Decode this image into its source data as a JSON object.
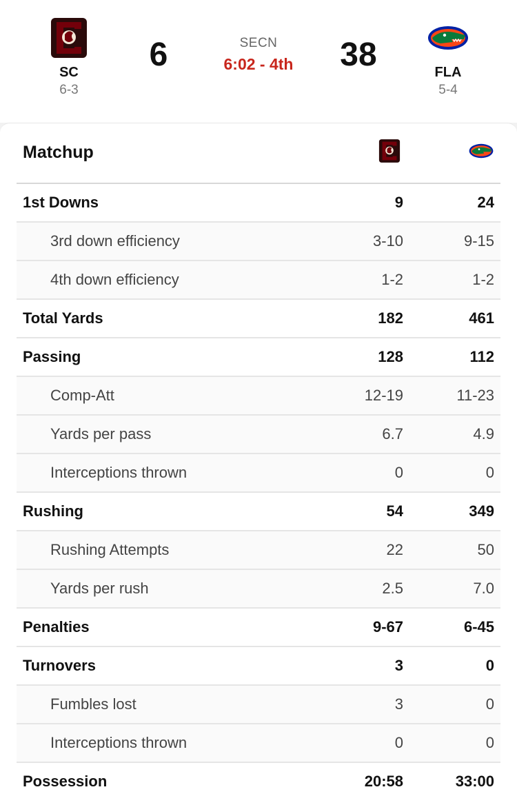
{
  "header": {
    "home": {
      "abbr": "SC",
      "record": "6-3",
      "score": "6",
      "logo_icon": "gamecock-logo-icon"
    },
    "away": {
      "abbr": "FLA",
      "record": "5-4",
      "score": "38",
      "logo_icon": "gator-logo-icon"
    },
    "network": "SECN",
    "clock": "6:02 - 4th"
  },
  "colors": {
    "clock_red": "#c8261c",
    "sc_garnet": "#73000a",
    "fla_blue": "#0021a5",
    "fla_orange": "#fa4616"
  },
  "matchup": {
    "title": "Matchup",
    "rows": [
      {
        "label": "1st Downs",
        "home": "9",
        "away": "24",
        "type": "main"
      },
      {
        "label": "3rd down efficiency",
        "home": "3-10",
        "away": "9-15",
        "type": "sub"
      },
      {
        "label": "4th down efficiency",
        "home": "1-2",
        "away": "1-2",
        "type": "sub"
      },
      {
        "label": "Total Yards",
        "home": "182",
        "away": "461",
        "type": "main"
      },
      {
        "label": "Passing",
        "home": "128",
        "away": "112",
        "type": "main"
      },
      {
        "label": "Comp-Att",
        "home": "12-19",
        "away": "11-23",
        "type": "sub"
      },
      {
        "label": "Yards per pass",
        "home": "6.7",
        "away": "4.9",
        "type": "sub"
      },
      {
        "label": "Interceptions thrown",
        "home": "0",
        "away": "0",
        "type": "sub"
      },
      {
        "label": "Rushing",
        "home": "54",
        "away": "349",
        "type": "main"
      },
      {
        "label": "Rushing Attempts",
        "home": "22",
        "away": "50",
        "type": "sub"
      },
      {
        "label": "Yards per rush",
        "home": "2.5",
        "away": "7.0",
        "type": "sub"
      },
      {
        "label": "Penalties",
        "home": "9-67",
        "away": "6-45",
        "type": "main"
      },
      {
        "label": "Turnovers",
        "home": "3",
        "away": "0",
        "type": "main"
      },
      {
        "label": "Fumbles lost",
        "home": "3",
        "away": "0",
        "type": "sub"
      },
      {
        "label": "Interceptions thrown",
        "home": "0",
        "away": "0",
        "type": "sub"
      },
      {
        "label": "Possession",
        "home": "20:58",
        "away": "33:00",
        "type": "main"
      }
    ]
  }
}
